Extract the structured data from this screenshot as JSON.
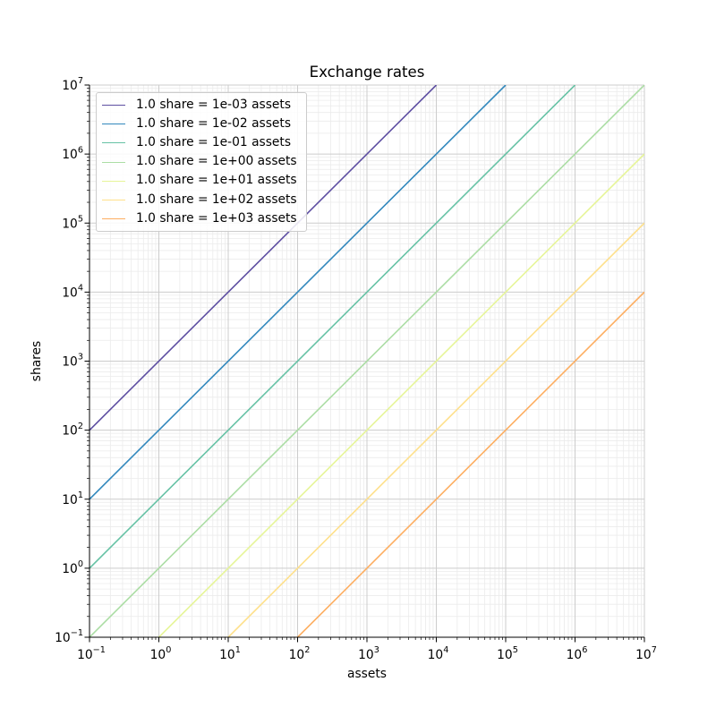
{
  "chart_data": {
    "type": "line",
    "title": "Exchange rates",
    "xlabel": "assets",
    "ylabel": "shares",
    "xscale": "log",
    "yscale": "log",
    "xlim": [
      0.1,
      10000000
    ],
    "ylim": [
      0.1,
      10000000
    ],
    "x_tick_exponents": [
      -1,
      0,
      1,
      2,
      3,
      4,
      5,
      6,
      7
    ],
    "y_tick_exponents": [
      -1,
      0,
      1,
      2,
      3,
      4,
      5,
      6,
      7
    ],
    "grid": "both",
    "legend_position": "upper left",
    "series": [
      {
        "label": "1.0 share = 1e-03 assets",
        "assets_per_share": 0.001,
        "color": "#5e4fa2",
        "points_xy": [
          [
            0.1,
            100
          ],
          [
            10000,
            10000000
          ]
        ]
      },
      {
        "label": "1.0 share = 1e-02 assets",
        "assets_per_share": 0.01,
        "color": "#3288bd",
        "points_xy": [
          [
            0.1,
            10
          ],
          [
            100000,
            10000000
          ]
        ]
      },
      {
        "label": "1.0 share = 1e-01 assets",
        "assets_per_share": 0.1,
        "color": "#66c2a5",
        "points_xy": [
          [
            0.1,
            1
          ],
          [
            1000000,
            10000000
          ]
        ]
      },
      {
        "label": "1.0 share = 1e+00 assets",
        "assets_per_share": 1,
        "color": "#abdda4",
        "points_xy": [
          [
            0.1,
            0.1
          ],
          [
            10000000,
            10000000
          ]
        ]
      },
      {
        "label": "1.0 share = 1e+01 assets",
        "assets_per_share": 10,
        "color": "#e6f598",
        "points_xy": [
          [
            1,
            0.1
          ],
          [
            10000000,
            1000000
          ]
        ]
      },
      {
        "label": "1.0 share = 1e+02 assets",
        "assets_per_share": 100,
        "color": "#fee08b",
        "points_xy": [
          [
            10,
            0.1
          ],
          [
            10000000,
            100000
          ]
        ]
      },
      {
        "label": "1.0 share = 1e+03 assets",
        "assets_per_share": 1000,
        "color": "#fdae61",
        "points_xy": [
          [
            100,
            0.1
          ],
          [
            10000000,
            10000
          ]
        ]
      }
    ],
    "style": {
      "background": "#ffffff",
      "grid_major_color": "#cccccc",
      "grid_minor_color": "#ebebeb",
      "spine_color": "#000000",
      "text_color": "#000000",
      "legend_border_color": "#cccccc"
    }
  }
}
